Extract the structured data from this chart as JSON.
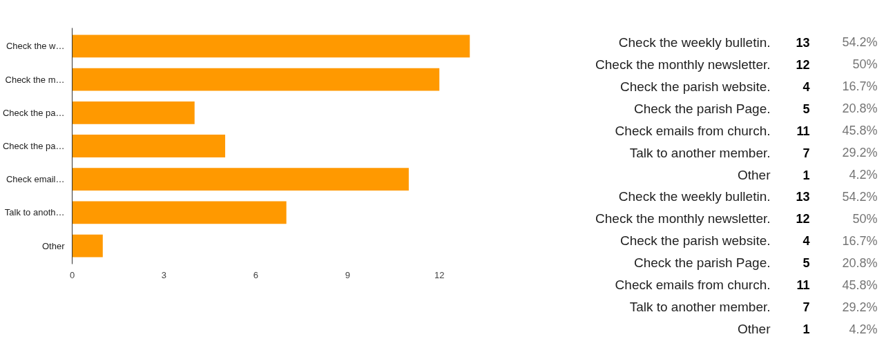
{
  "chart_data": [
    {
      "type": "bar",
      "orientation": "horizontal",
      "categories": [
        "Check the w…",
        "Check the m…",
        "Check the pa…",
        "Check the pa…",
        "Check email…",
        "Talk to anoth…",
        "Other"
      ],
      "values": [
        13,
        12,
        4,
        5,
        11,
        7,
        1
      ],
      "color": "#ff9900",
      "xlim": [
        0,
        13
      ],
      "xticks": [
        0,
        3,
        6,
        9,
        12
      ],
      "grid": false
    },
    {
      "type": "other",
      "data_labels": true,
      "categories": [
        "Check the weekly bulletin.",
        "Check the monthly newsletter.",
        "Check the parish website.",
        "Check the parish Page.",
        "Check emails from church.",
        "Talk to another member.",
        "Other",
        "Check the weekly bulletin.",
        "Check the monthly newsletter.",
        "Check the parish website.",
        "Check the parish Page.",
        "Check emails from church.",
        "Talk to another member.",
        "Other"
      ],
      "series": [
        {
          "color": "#000000",
          "values": [
            13,
            12,
            4,
            5,
            11,
            7,
            1,
            13,
            12,
            4,
            5,
            11,
            7,
            1
          ]
        },
        {
          "color": "#757575",
          "values": [
            54.2,
            50,
            16.7,
            20.8,
            45.8,
            29.2,
            4.2,
            54.2,
            50,
            16.7,
            20.8,
            45.8,
            29.2,
            4.2
          ],
          "value_labels": [
            "54.2%",
            "50%",
            "16.7%",
            "20.8%",
            "45.8%",
            "29.2%",
            "4.2%",
            "54.2%",
            "50%",
            "16.7%",
            "20.8%",
            "45.8%",
            "29.2%",
            "4.2%"
          ]
        }
      ]
    }
  ]
}
